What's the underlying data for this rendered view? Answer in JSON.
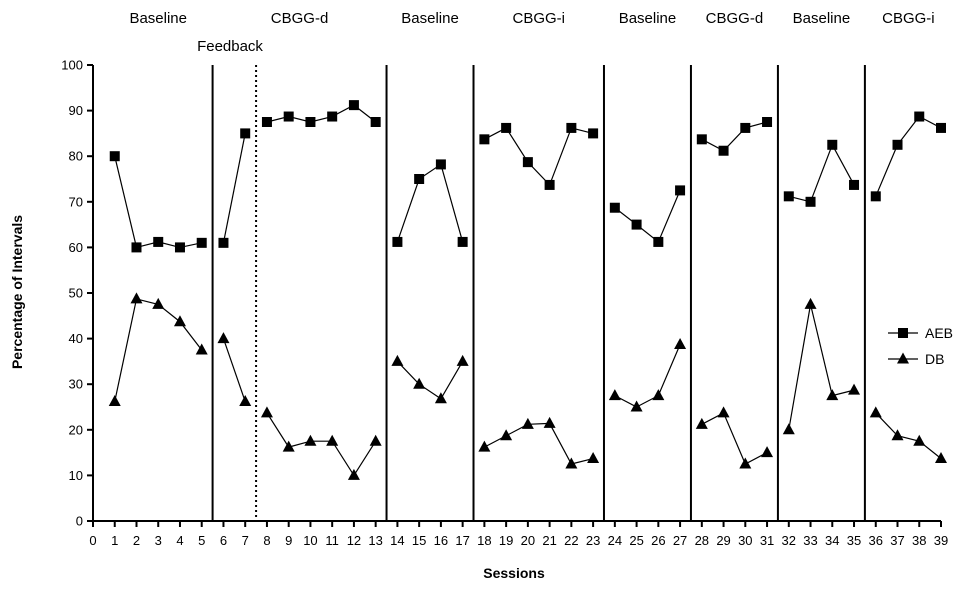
{
  "chart_data": {
    "type": "line",
    "title": "",
    "xlabel": "Sessions",
    "ylabel": "Percentage of Intervals",
    "xlim": [
      0,
      39
    ],
    "ylim": [
      0,
      100
    ],
    "x_ticks": [
      0,
      1,
      2,
      3,
      4,
      5,
      6,
      7,
      8,
      9,
      10,
      11,
      12,
      13,
      14,
      15,
      16,
      17,
      18,
      19,
      20,
      21,
      22,
      23,
      24,
      25,
      26,
      27,
      28,
      29,
      30,
      31,
      32,
      33,
      34,
      35,
      36,
      37,
      38,
      39
    ],
    "y_ticks": [
      0,
      10,
      20,
      30,
      40,
      50,
      60,
      70,
      80,
      90,
      100
    ],
    "grid": false,
    "legend_position": "right",
    "phases": [
      {
        "label": "Baseline",
        "sessions": [
          1,
          5
        ]
      },
      {
        "label": "CBGG-d",
        "sessions": [
          6,
          13
        ]
      },
      {
        "label": "Baseline",
        "sessions": [
          14,
          17
        ]
      },
      {
        "label": "CBGG-i",
        "sessions": [
          18,
          23
        ]
      },
      {
        "label": "Baseline",
        "sessions": [
          24,
          27
        ]
      },
      {
        "label": "CBGG-d",
        "sessions": [
          28,
          31
        ]
      },
      {
        "label": "Baseline",
        "sessions": [
          32,
          35
        ]
      },
      {
        "label": "CBGG-i",
        "sessions": [
          36,
          39
        ]
      }
    ],
    "solid_phase_lines": [
      5.5,
      13.5,
      17.5,
      23.5,
      27.5,
      31.5,
      35.5
    ],
    "dotted_phase_lines": [
      7.5
    ],
    "annotations": [
      {
        "text": "Feedback"
      }
    ],
    "series": [
      {
        "name": "AEB",
        "marker": "square",
        "segments": [
          {
            "x": [
              1,
              2,
              3,
              4,
              5
            ],
            "y": [
              80,
              60,
              61.2,
              60,
              61
            ]
          },
          {
            "x": [
              6,
              7
            ],
            "y": [
              61,
              85
            ]
          },
          {
            "x": [
              8,
              9,
              10,
              11,
              12,
              13
            ],
            "y": [
              87.5,
              88.7,
              87.5,
              88.7,
              91.2,
              87.5
            ]
          },
          {
            "x": [
              14,
              15,
              16,
              17
            ],
            "y": [
              61.2,
              75,
              78.2,
              61.2
            ]
          },
          {
            "x": [
              18,
              19,
              20,
              21,
              22,
              23
            ],
            "y": [
              83.7,
              86.2,
              78.7,
              73.7,
              86.2,
              85
            ]
          },
          {
            "x": [
              24,
              25,
              26,
              27
            ],
            "y": [
              68.7,
              65,
              61.2,
              72.5
            ]
          },
          {
            "x": [
              28,
              29,
              30,
              31
            ],
            "y": [
              83.7,
              81.2,
              86.2,
              87.5
            ]
          },
          {
            "x": [
              32,
              33,
              34,
              35
            ],
            "y": [
              71.2,
              70,
              82.5,
              73.7
            ]
          },
          {
            "x": [
              36,
              37,
              38,
              39
            ],
            "y": [
              71.2,
              82.5,
              88.7,
              86.2
            ]
          }
        ]
      },
      {
        "name": "DB",
        "marker": "triangle",
        "segments": [
          {
            "x": [
              1,
              2,
              3,
              4,
              5
            ],
            "y": [
              26.2,
              48.7,
              47.5,
              43.7,
              37.5
            ]
          },
          {
            "x": [
              6,
              7
            ],
            "y": [
              40,
              26.2
            ]
          },
          {
            "x": [
              8,
              9,
              10,
              11,
              12,
              13
            ],
            "y": [
              23.7,
              16.2,
              17.5,
              17.5,
              10,
              17.5
            ]
          },
          {
            "x": [
              14,
              15,
              16,
              17
            ],
            "y": [
              35,
              30,
              26.8,
              35
            ]
          },
          {
            "x": [
              18,
              19,
              20,
              21,
              22,
              23
            ],
            "y": [
              16.2,
              18.7,
              21.2,
              21.4,
              12.5,
              13.7
            ]
          },
          {
            "x": [
              24,
              25,
              26,
              27
            ],
            "y": [
              27.5,
              25,
              27.5,
              38.7
            ]
          },
          {
            "x": [
              28,
              29,
              30,
              31
            ],
            "y": [
              21.2,
              23.7,
              12.5,
              15
            ]
          },
          {
            "x": [
              32,
              33,
              34,
              35
            ],
            "y": [
              20,
              47.5,
              27.5,
              28.7
            ]
          },
          {
            "x": [
              36,
              37,
              38,
              39
            ],
            "y": [
              23.7,
              18.7,
              17.5,
              13.7
            ]
          }
        ]
      }
    ]
  }
}
